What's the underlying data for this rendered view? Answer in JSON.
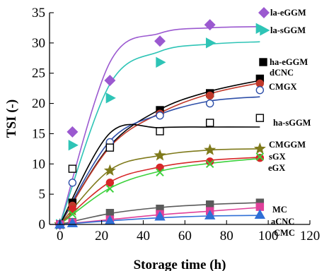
{
  "chart_data": {
    "type": "scatter",
    "xlabel": "Storage time (h)",
    "ylabel": "TSI (-)",
    "xlim": [
      -5,
      120
    ],
    "ylim": [
      0,
      35
    ],
    "x_ticks": [
      "0",
      "20",
      "40",
      "60",
      "80",
      "100",
      "120"
    ],
    "y_ticks": [
      "0",
      "5",
      "10",
      "15",
      "20",
      "25",
      "30",
      "35"
    ],
    "grid": false,
    "series": [
      {
        "name": "la-eGGM",
        "color": "#9b59d0",
        "marker": "diamond",
        "filled": true,
        "x": [
          0,
          6,
          24,
          48,
          72
        ],
        "y": [
          0,
          15.3,
          23.8,
          30.3,
          33.0
        ],
        "curve_x": [
          0,
          24,
          48,
          72,
          96
        ],
        "curve_y": [
          0,
          26.8,
          31.6,
          32.5,
          32.7
        ]
      },
      {
        "name": "la-sGGM",
        "color": "#2ec4b6",
        "marker": "tri-right",
        "filled": true,
        "x": [
          0,
          6,
          24,
          48,
          72,
          96
        ],
        "y": [
          0,
          13.1,
          20.9,
          26.8,
          30.0,
          32.4
        ],
        "curve_x": [
          0,
          24,
          48,
          72,
          96
        ],
        "curve_y": [
          0,
          23.2,
          28.6,
          29.8,
          30.2
        ]
      },
      {
        "name": "ha-eGGM",
        "color": "#000000",
        "marker": "square",
        "filled": true,
        "x": [
          0,
          6,
          24,
          48,
          72,
          96
        ],
        "y": [
          0,
          3.6,
          13.0,
          18.9,
          21.7,
          24.1
        ],
        "curve_x": [
          0,
          24,
          48,
          72,
          96
        ],
        "curve_y": [
          0,
          13.0,
          19.0,
          22.0,
          23.8
        ]
      },
      {
        "name": "dCNC",
        "color": "#c0392b",
        "marker": "circle",
        "filled": true,
        "x": [
          0,
          6,
          24,
          48,
          72,
          96
        ],
        "y": [
          0,
          3.1,
          12.8,
          18.3,
          21.3,
          23.3
        ],
        "curve_x": [
          0,
          24,
          48,
          72,
          96
        ],
        "curve_y": [
          0,
          12.8,
          18.4,
          21.6,
          23.4
        ]
      },
      {
        "name": "CMGX",
        "color": "#2e4fa8",
        "marker": "circle",
        "filled": false,
        "x": [
          0,
          6,
          24,
          48,
          72,
          96
        ],
        "y": [
          0,
          6.9,
          13.6,
          18.0,
          20.0,
          22.2
        ],
        "curve_x": [
          0,
          24,
          48,
          72,
          96
        ],
        "curve_y": [
          0,
          13.8,
          18.2,
          20.4,
          21.1
        ]
      },
      {
        "name": "ha-sGGM",
        "color": "#000000",
        "marker": "square",
        "filled": false,
        "x": [
          0,
          6,
          24,
          48,
          72,
          96
        ],
        "y": [
          0,
          9.2,
          12.7,
          15.4,
          16.8,
          17.6
        ],
        "curve_x": [
          0,
          24,
          48,
          72,
          96
        ],
        "curve_y": [
          0,
          15.1,
          16.0,
          16.1,
          16.1
        ]
      },
      {
        "name": "CMGGM",
        "color": "#7f7a1b",
        "marker": "star",
        "filled": true,
        "x": [
          0,
          6,
          24,
          48,
          72,
          96
        ],
        "y": [
          0,
          2.3,
          8.9,
          11.4,
          12.3,
          12.5
        ],
        "curve_x": [
          0,
          24,
          48,
          72,
          96
        ],
        "curve_y": [
          0,
          9.0,
          11.4,
          12.3,
          12.5
        ]
      },
      {
        "name": "sGX",
        "color": "#d62728",
        "marker": "circle",
        "filled": true,
        "x": [
          0,
          6,
          24,
          48,
          72,
          96
        ],
        "y": [
          0,
          2.5,
          6.9,
          9.4,
          10.4,
          11.0
        ],
        "curve_x": [
          0,
          24,
          48,
          72,
          96
        ],
        "curve_y": [
          0,
          7.0,
          9.5,
          10.6,
          11.1
        ]
      },
      {
        "name": "eGX",
        "color": "#3cd13c",
        "marker": "x",
        "filled": false,
        "x": [
          0,
          6,
          24,
          48,
          72,
          96
        ],
        "y": [
          0,
          1.7,
          5.9,
          8.6,
          10.0,
          11.2
        ],
        "curve_x": [
          0,
          24,
          48,
          72,
          96
        ],
        "curve_y": [
          0,
          6.0,
          8.8,
          10.1,
          10.9
        ]
      },
      {
        "name": "MC",
        "color": "#5a5a5a",
        "marker": "square",
        "filled": true,
        "x": [
          0,
          6,
          24,
          48,
          72,
          96
        ],
        "y": [
          0,
          0.4,
          1.9,
          2.6,
          3.3,
          3.6
        ],
        "curve_x": [
          0,
          24,
          48,
          72,
          96
        ],
        "curve_y": [
          0,
          1.8,
          2.8,
          3.3,
          3.6
        ]
      },
      {
        "name": "aCNC",
        "color": "#e0409a",
        "marker": "square",
        "filled": true,
        "x": [
          0,
          6,
          24,
          48,
          72,
          96
        ],
        "y": [
          0,
          0.3,
          0.8,
          1.7,
          2.2,
          2.9
        ],
        "curve_x": [
          0,
          24,
          48,
          72,
          96
        ],
        "curve_y": [
          0,
          0.8,
          1.6,
          2.2,
          2.8
        ]
      },
      {
        "name": "CMC",
        "color": "#2f6fd6",
        "marker": "triangle",
        "filled": true,
        "x": [
          0,
          6,
          24,
          48,
          72,
          96
        ],
        "y": [
          0,
          0.2,
          0.6,
          1.3,
          1.5,
          1.6
        ],
        "curve_x": [
          0,
          24,
          48,
          72,
          96
        ],
        "curve_y": [
          0,
          0.6,
          1.1,
          1.4,
          1.5
        ]
      }
    ],
    "labels": [
      {
        "text": "la-eGGM",
        "marker": "diamond",
        "color": "#9b59d0"
      },
      {
        "text": "la-sGGM",
        "marker": "tri-right",
        "color": "#2ec4b6"
      },
      {
        "text": "ha-eGGM",
        "marker": "square",
        "color": "#000000"
      },
      {
        "text": "dCNC",
        "marker": "",
        "color": "#000000"
      },
      {
        "text": "CMGX",
        "marker": "",
        "color": "#000000"
      },
      {
        "text": "ha-sGGM",
        "marker": "",
        "color": "#000000"
      },
      {
        "text": "CMGGM",
        "marker": "",
        "color": "#000000"
      },
      {
        "text": "sGX",
        "marker": "",
        "color": "#000000"
      },
      {
        "text": "eGX",
        "marker": "",
        "color": "#000000"
      },
      {
        "text": "MC",
        "marker": "",
        "color": "#000000"
      },
      {
        "text": "aCNC",
        "marker": "",
        "color": "#000000"
      },
      {
        "text": "CMC",
        "marker": "",
        "color": "#000000"
      }
    ]
  }
}
